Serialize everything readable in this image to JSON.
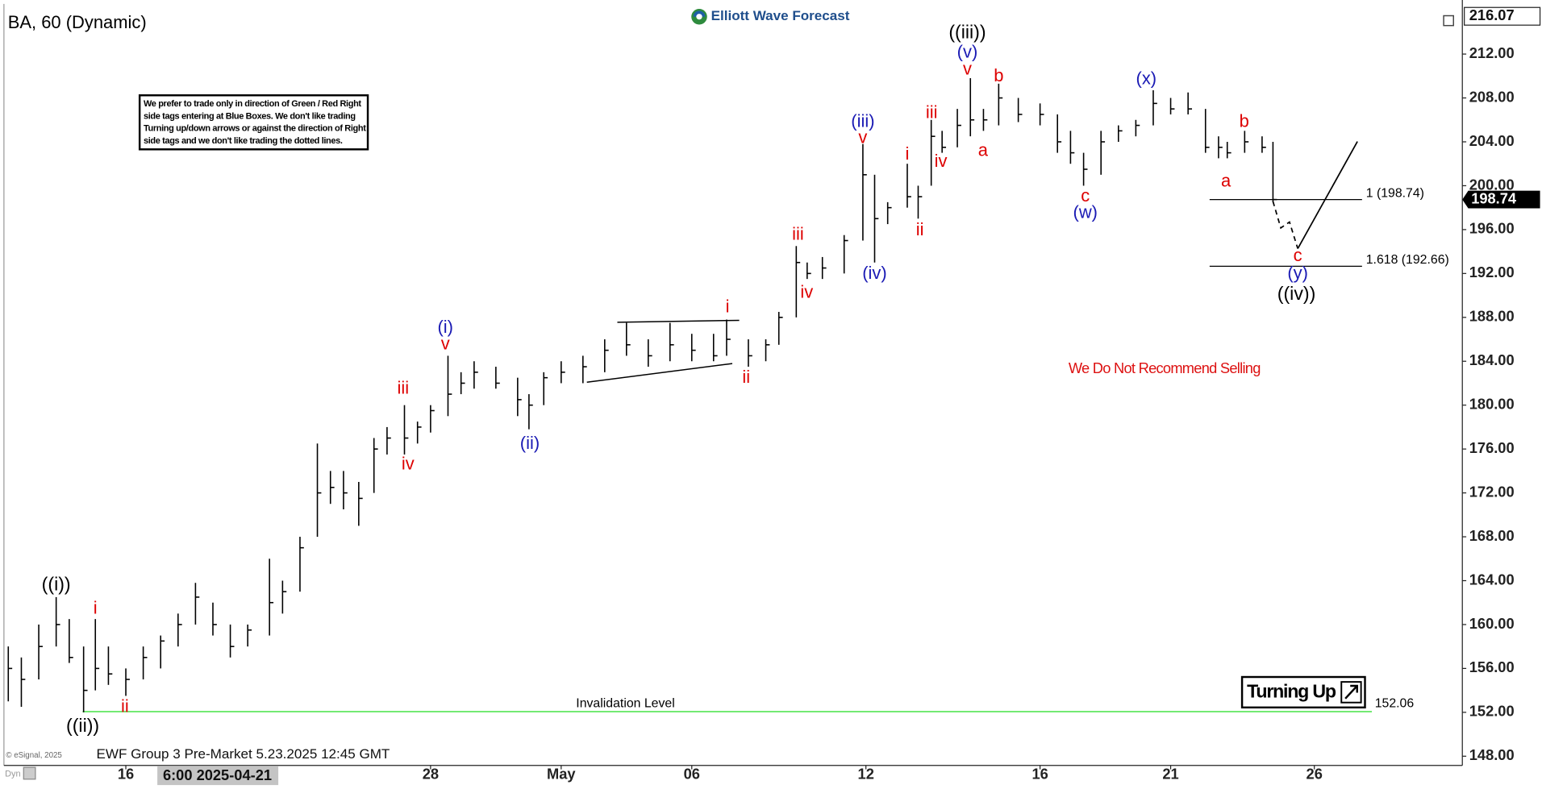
{
  "chart_data": {
    "type": "ohlc",
    "title": "BA, 60 (Dynamic)",
    "brand": "Elliott Wave Forecast",
    "footer": "EWF Group 3 Pre-Market 5.23.2025 12:45 GMT",
    "copyright": "© eSignal, 2025",
    "mode_label": "Dyn",
    "cursor_label": "6:00 2025-04-21",
    "disclaimer": [
      "We prefer to trade only in direction of Green / Red Right",
      "side tags entering at Blue Boxes. We don't like trading",
      "Turning up/down arrows or against the direction of Right",
      "side tags and we don't like trading the dotted lines."
    ],
    "notice": "We Do Not Recommend Selling",
    "signal": "Turning Up",
    "xlim": [
      -0.8,
      32.7
    ],
    "xticks": [
      {
        "value": 2,
        "label": "16"
      },
      {
        "value": 9,
        "label": "28"
      },
      {
        "value": 12,
        "label": "May"
      },
      {
        "value": 15,
        "label": "06"
      },
      {
        "value": 19,
        "label": "12"
      },
      {
        "value": 23,
        "label": "16"
      },
      {
        "value": 26,
        "label": "21"
      },
      {
        "value": 29.3,
        "label": "26"
      }
    ],
    "ylim": [
      147.16,
      216.48
    ],
    "yticks": [
      {
        "value": 148,
        "label": "148.00"
      },
      {
        "value": 152,
        "label": "152.00"
      },
      {
        "value": 156,
        "label": "156.00"
      },
      {
        "value": 160,
        "label": "160.00"
      },
      {
        "value": 164,
        "label": "164.00"
      },
      {
        "value": 168,
        "label": "168.00"
      },
      {
        "value": 172,
        "label": "172.00"
      },
      {
        "value": 176,
        "label": "176.00"
      },
      {
        "value": 180,
        "label": "180.00"
      },
      {
        "value": 184,
        "label": "184.00"
      },
      {
        "value": 188,
        "label": "188.00"
      },
      {
        "value": 192,
        "label": "192.00"
      },
      {
        "value": 196,
        "label": "196.00"
      },
      {
        "value": 200,
        "label": "200.00"
      },
      {
        "value": 204,
        "label": "204.00"
      },
      {
        "value": 208,
        "label": "208.00"
      },
      {
        "value": 212,
        "label": "212.00"
      }
    ],
    "grid": false,
    "bar_color": "#000000",
    "high_marker": {
      "value": 216.07,
      "label": "216.07"
    },
    "last_price": {
      "value": 198.74,
      "label": "198.74"
    },
    "invalidation": {
      "value": 152.06,
      "label": "152.06",
      "text": "Invalidation Level",
      "color": "#22dd22"
    },
    "fib_levels": [
      {
        "value": 198.74,
        "label": "1 (198.74)"
      },
      {
        "value": 192.66,
        "label": "1.618 (192.66)"
      }
    ],
    "trendlines": [
      {
        "x": [
          13.29,
          16.09
        ],
        "y": [
          187.55,
          187.73
        ]
      },
      {
        "x": [
          12.59,
          15.93
        ],
        "y": [
          182.09,
          183.79
        ]
      }
    ],
    "projection": {
      "x": [
        28.35,
        28.53,
        28.73,
        28.92,
        30.29
      ],
      "y": [
        198.57,
        196.15,
        196.69,
        194.27,
        204.03
      ]
    },
    "ohlc": {
      "x": [
        -0.7,
        -0.4,
        0,
        0.4,
        0.7,
        1.03,
        1.3,
        1.6,
        2,
        2.4,
        2.8,
        3.2,
        3.6,
        4,
        4.4,
        4.8,
        5.3,
        5.6,
        6,
        6.4,
        6.7,
        7,
        7.35,
        7.7,
        8,
        8.4,
        8.7,
        9,
        9.4,
        9.7,
        10,
        10.5,
        11,
        11.26,
        11.6,
        12,
        12.5,
        13,
        13.5,
        14,
        14.5,
        15,
        15.5,
        15.8,
        16.3,
        16.7,
        17,
        17.4,
        17.65,
        18,
        18.5,
        18.93,
        19.2,
        19.5,
        19.95,
        20.2,
        20.5,
        20.75,
        21.1,
        21.4,
        21.7,
        22.05,
        22.5,
        23,
        23.4,
        23.7,
        24,
        24.4,
        24.8,
        25.2,
        25.6,
        26,
        26.4,
        26.8,
        27.1,
        27.3,
        27.7,
        28.1,
        28.35
      ],
      "high": [
        158,
        157,
        160,
        162.5,
        160.5,
        158,
        160.5,
        158,
        156,
        158,
        159,
        161,
        163.8,
        162,
        160,
        160,
        166,
        164,
        168,
        176.5,
        174,
        174,
        173,
        177,
        178,
        180,
        178.5,
        180,
        184.5,
        183,
        184,
        183.5,
        182.5,
        181,
        183,
        184,
        184.5,
        186,
        187.5,
        186,
        187.5,
        186.5,
        186.5,
        187.8,
        186,
        186,
        188.5,
        194.5,
        193,
        193.5,
        195.5,
        203.8,
        201,
        198.5,
        202,
        200,
        206,
        205,
        207,
        209.8,
        207,
        209.3,
        208,
        207.5,
        206.5,
        205,
        203,
        205,
        205.5,
        206,
        208.7,
        208,
        208.5,
        207,
        204.5,
        204,
        205,
        204.5,
        204
      ],
      "low": [
        153,
        152.5,
        155,
        158,
        156.5,
        152,
        154,
        154.5,
        153.5,
        155,
        156,
        158,
        160,
        159,
        157,
        158,
        159,
        161,
        163,
        168,
        171,
        170.5,
        169,
        172,
        175.5,
        175.5,
        176.5,
        177.5,
        179,
        181,
        181.5,
        181.5,
        179,
        177.8,
        180,
        182,
        182,
        183,
        184.5,
        183.5,
        184,
        184,
        184,
        184.5,
        183.5,
        184,
        185.5,
        188,
        191.5,
        191.5,
        192,
        195,
        193,
        196.5,
        198,
        197,
        200,
        203,
        203.5,
        204.5,
        205,
        205.5,
        205.8,
        205.5,
        203,
        202,
        200,
        201,
        204,
        204.5,
        205.5,
        206.5,
        206.5,
        203,
        202.5,
        202.5,
        203,
        203,
        198.5
      ],
      "close": [
        156,
        155,
        158,
        160,
        157,
        154,
        156,
        155.5,
        155,
        157,
        158.5,
        160,
        162.5,
        160,
        158,
        159.5,
        162,
        163,
        167,
        172,
        172.5,
        172,
        171.5,
        176,
        177,
        177,
        178,
        179.5,
        181,
        182,
        183,
        182,
        180.5,
        180,
        182.5,
        183,
        183.5,
        185,
        185.5,
        184.5,
        185.5,
        185,
        184.5,
        186,
        184.5,
        185.5,
        188,
        193,
        192,
        192.5,
        195,
        201,
        197,
        198,
        199,
        199,
        204.5,
        203.5,
        205.5,
        206,
        206,
        208,
        206.5,
        206.5,
        204,
        203,
        201.5,
        204,
        205,
        205.5,
        207.5,
        207,
        207,
        203.5,
        203.5,
        203,
        204,
        203.5,
        198.74
      ]
    },
    "annotations": [
      {
        "text": "((i))",
        "x": 0.4,
        "y": 163.55,
        "color": "#000000"
      },
      {
        "text": "((ii))",
        "x": 1.01,
        "y": 150.66,
        "color": "#000000"
      },
      {
        "text": "i",
        "x": 1.3,
        "y": 161.4,
        "color": "#dd0000"
      },
      {
        "text": "ii",
        "x": 1.98,
        "y": 152.45,
        "color": "#dd0000"
      },
      {
        "text": "iii",
        "x": 8.37,
        "y": 181.46,
        "color": "#dd0000"
      },
      {
        "text": "iv",
        "x": 8.48,
        "y": 174.57,
        "color": "#dd0000"
      },
      {
        "text": "(i)",
        "x": 9.34,
        "y": 187.0,
        "color": "#1a1ab4"
      },
      {
        "text": "v",
        "x": 9.34,
        "y": 185.5,
        "color": "#dd0000"
      },
      {
        "text": "(ii)",
        "x": 11.28,
        "y": 176.45,
        "color": "#1a1ab4"
      },
      {
        "text": "i",
        "x": 15.82,
        "y": 188.9,
        "color": "#dd0000"
      },
      {
        "text": "ii",
        "x": 16.25,
        "y": 182.45,
        "color": "#dd0000"
      },
      {
        "text": "iii",
        "x": 17.44,
        "y": 195.5,
        "color": "#dd0000"
      },
      {
        "text": "iv",
        "x": 17.64,
        "y": 190.2,
        "color": "#dd0000"
      },
      {
        "text": "(iii)",
        "x": 18.93,
        "y": 205.8,
        "color": "#1a1ab4"
      },
      {
        "text": "v",
        "x": 18.93,
        "y": 204.3,
        "color": "#dd0000"
      },
      {
        "text": "(iv)",
        "x": 19.2,
        "y": 191.94,
        "color": "#1a1ab4"
      },
      {
        "text": "i",
        "x": 19.95,
        "y": 202.8,
        "color": "#dd0000"
      },
      {
        "text": "ii",
        "x": 20.24,
        "y": 195.9,
        "color": "#dd0000"
      },
      {
        "text": "iii",
        "x": 20.51,
        "y": 206.6,
        "color": "#dd0000"
      },
      {
        "text": "iv",
        "x": 20.72,
        "y": 202.15,
        "color": "#dd0000"
      },
      {
        "text": "((iii))",
        "x": 21.33,
        "y": 213.88,
        "color": "#000000"
      },
      {
        "text": "(v)",
        "x": 21.33,
        "y": 212.09,
        "color": "#1a1ab4"
      },
      {
        "text": "v",
        "x": 21.33,
        "y": 210.57,
        "color": "#dd0000"
      },
      {
        "text": "b",
        "x": 22.05,
        "y": 209.94,
        "color": "#dd0000"
      },
      {
        "text": "a",
        "x": 21.69,
        "y": 203.13,
        "color": "#dd0000"
      },
      {
        "text": "c",
        "x": 24.04,
        "y": 199.0,
        "color": "#dd0000"
      },
      {
        "text": "(w)",
        "x": 24.04,
        "y": 197.5,
        "color": "#1a1ab4"
      },
      {
        "text": "(x)",
        "x": 25.44,
        "y": 209.67,
        "color": "#1a1ab4"
      },
      {
        "text": "b",
        "x": 27.69,
        "y": 205.8,
        "color": "#dd0000"
      },
      {
        "text": "a",
        "x": 27.27,
        "y": 200.35,
        "color": "#dd0000"
      },
      {
        "text": "c",
        "x": 28.92,
        "y": 193.55,
        "color": "#dd0000"
      },
      {
        "text": "(y)",
        "x": 28.92,
        "y": 191.94,
        "color": "#1a1ab4"
      },
      {
        "text": "((iv))",
        "x": 28.89,
        "y": 190.06,
        "color": "#000000"
      }
    ]
  }
}
